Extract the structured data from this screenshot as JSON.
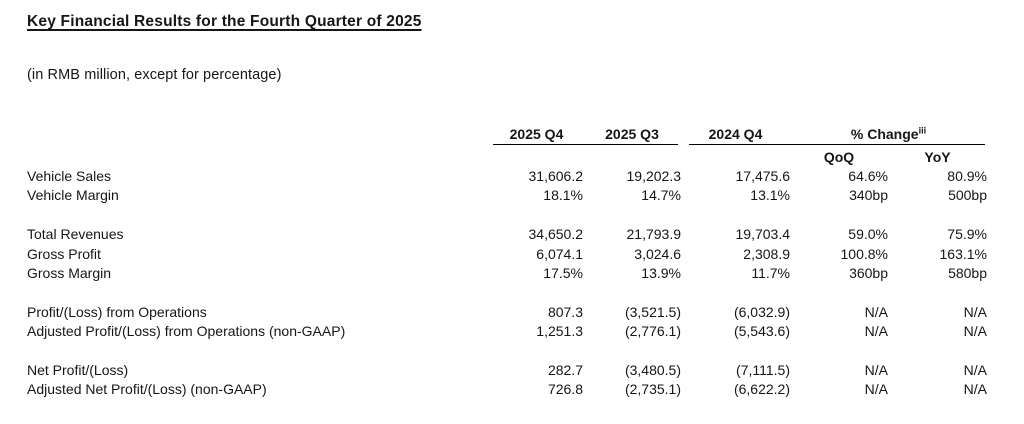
{
  "page": {
    "title": "Key Financial Results for the Fourth Quarter of 2025",
    "subtitle": "(in RMB million, except for percentage)"
  },
  "table": {
    "headers": {
      "col1": "2025 Q4",
      "col2": "2025 Q3",
      "col3": "2024 Q4",
      "change": "% Change",
      "change_footnote": "iii",
      "qoq": "QoQ",
      "yoy": "YoY"
    },
    "rows": [
      {
        "label": "Vehicle Sales",
        "values": [
          "31,606.2",
          "19,202.3",
          "17,475.6",
          "64.6%",
          "80.9%"
        ]
      },
      {
        "label": "Vehicle Margin",
        "values": [
          "18.1%",
          "14.7%",
          "13.1%",
          "340bp",
          "500bp"
        ]
      },
      {
        "label": "Total Revenues",
        "values": [
          "34,650.2",
          "21,793.9",
          "19,703.4",
          "59.0%",
          "75.9%"
        ]
      },
      {
        "label": "Gross Profit",
        "values": [
          "6,074.1",
          "3,024.6",
          "2,308.9",
          "100.8%",
          "163.1%"
        ]
      },
      {
        "label": "Gross Margin",
        "values": [
          "17.5%",
          "13.9%",
          "11.7%",
          "360bp",
          "580bp"
        ]
      },
      {
        "label": "Profit/(Loss) from Operations",
        "values": [
          "807.3",
          "(3,521.5)",
          "(6,032.9)",
          "N/A",
          "N/A"
        ]
      },
      {
        "label": "Adjusted Profit/(Loss) from Operations (non-GAAP)",
        "values": [
          "1,251.3",
          "(2,776.1)",
          "(5,543.6)",
          "N/A",
          "N/A"
        ]
      },
      {
        "label": "Net Profit/(Loss)",
        "values": [
          "282.7",
          "(3,480.5)",
          "(7,111.5)",
          "N/A",
          "N/A"
        ]
      },
      {
        "label": "Adjusted Net Profit/(Loss) (non-GAAP)",
        "values": [
          "726.8",
          "(2,735.1)",
          "(6,622.2)",
          "N/A",
          "N/A"
        ]
      }
    ]
  }
}
